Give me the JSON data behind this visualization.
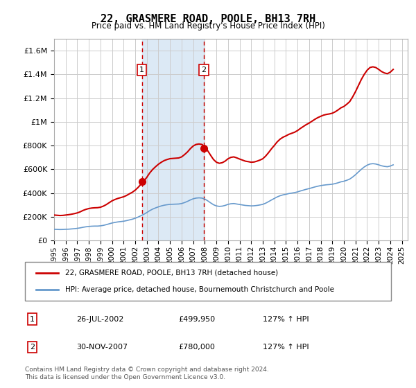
{
  "title": "22, GRASMERE ROAD, POOLE, BH13 7RH",
  "subtitle": "Price paid vs. HM Land Registry's House Price Index (HPI)",
  "hpi_label": "HPI: Average price, detached house, Bournemouth Christchurch and Poole",
  "property_label": "22, GRASMERE ROAD, POOLE, BH13 7RH (detached house)",
  "footer": "Contains HM Land Registry data © Crown copyright and database right 2024.\nThis data is licensed under the Open Government Licence v3.0.",
  "transactions": [
    {
      "label": "1",
      "date": "26-JUL-2002",
      "price": 499950,
      "hpi_pct": "127% ↑ HPI",
      "x": 2002.57
    },
    {
      "label": "2",
      "date": "30-NOV-2007",
      "price": 780000,
      "hpi_pct": "127% ↑ HPI",
      "x": 2007.92
    }
  ],
  "property_color": "#cc0000",
  "hpi_color": "#6699cc",
  "shaded_color": "#dce9f5",
  "annotation_box_color": "#cc0000",
  "ylim": [
    0,
    1700000
  ],
  "xlim_start": 1995,
  "xlim_end": 2025.5,
  "hpi_data": {
    "years": [
      1995,
      1995.25,
      1995.5,
      1995.75,
      1996,
      1996.25,
      1996.5,
      1996.75,
      1997,
      1997.25,
      1997.5,
      1997.75,
      1998,
      1998.25,
      1998.5,
      1998.75,
      1999,
      1999.25,
      1999.5,
      1999.75,
      2000,
      2000.25,
      2000.5,
      2000.75,
      2001,
      2001.25,
      2001.5,
      2001.75,
      2002,
      2002.25,
      2002.5,
      2002.75,
      2003,
      2003.25,
      2003.5,
      2003.75,
      2004,
      2004.25,
      2004.5,
      2004.75,
      2005,
      2005.25,
      2005.5,
      2005.75,
      2006,
      2006.25,
      2006.5,
      2006.75,
      2007,
      2007.25,
      2007.5,
      2007.75,
      2008,
      2008.25,
      2008.5,
      2008.75,
      2009,
      2009.25,
      2009.5,
      2009.75,
      2010,
      2010.25,
      2010.5,
      2010.75,
      2011,
      2011.25,
      2011.5,
      2011.75,
      2012,
      2012.25,
      2012.5,
      2012.75,
      2013,
      2013.25,
      2013.5,
      2013.75,
      2014,
      2014.25,
      2014.5,
      2014.75,
      2015,
      2015.25,
      2015.5,
      2015.75,
      2016,
      2016.25,
      2016.5,
      2016.75,
      2017,
      2017.25,
      2017.5,
      2017.75,
      2018,
      2018.25,
      2018.5,
      2018.75,
      2019,
      2019.25,
      2019.5,
      2019.75,
      2020,
      2020.25,
      2020.5,
      2020.75,
      2021,
      2021.25,
      2021.5,
      2021.75,
      2022,
      2022.25,
      2022.5,
      2022.75,
      2023,
      2023.25,
      2023.5,
      2023.75,
      2024,
      2024.25
    ],
    "values": [
      95000,
      94000,
      93000,
      93500,
      95000,
      96000,
      98000,
      100000,
      103000,
      107000,
      112000,
      116000,
      119000,
      121000,
      122000,
      122000,
      124000,
      128000,
      134000,
      141000,
      148000,
      153000,
      157000,
      160000,
      163000,
      168000,
      174000,
      180000,
      188000,
      198000,
      210000,
      222000,
      236000,
      252000,
      265000,
      275000,
      284000,
      292000,
      298000,
      302000,
      305000,
      306000,
      307000,
      308000,
      312000,
      320000,
      330000,
      342000,
      352000,
      358000,
      360000,
      358000,
      350000,
      335000,
      318000,
      302000,
      292000,
      288000,
      290000,
      296000,
      305000,
      310000,
      312000,
      308000,
      304000,
      300000,
      296000,
      294000,
      292000,
      293000,
      296000,
      300000,
      305000,
      315000,
      328000,
      342000,
      355000,
      368000,
      378000,
      385000,
      390000,
      396000,
      400000,
      404000,
      410000,
      418000,
      425000,
      432000,
      438000,
      445000,
      452000,
      458000,
      463000,
      467000,
      470000,
      472000,
      475000,
      480000,
      487000,
      495000,
      500000,
      508000,
      518000,
      535000,
      555000,
      578000,
      600000,
      620000,
      635000,
      645000,
      648000,
      645000,
      638000,
      630000,
      625000,
      622000,
      628000,
      638000
    ]
  },
  "property_data": {
    "years": [
      1995,
      1995.25,
      1995.5,
      1995.75,
      1996,
      1996.25,
      1996.5,
      1996.75,
      1997,
      1997.25,
      1997.5,
      1997.75,
      1998,
      1998.25,
      1998.5,
      1998.75,
      1999,
      1999.25,
      1999.5,
      1999.75,
      2000,
      2000.25,
      2000.5,
      2000.75,
      2001,
      2001.25,
      2001.5,
      2001.75,
      2002,
      2002.25,
      2002.5,
      2002.75,
      2003,
      2003.25,
      2003.5,
      2003.75,
      2004,
      2004.25,
      2004.5,
      2004.75,
      2005,
      2005.25,
      2005.5,
      2005.75,
      2006,
      2006.25,
      2006.5,
      2006.75,
      2007,
      2007.25,
      2007.5,
      2007.75,
      2008,
      2008.25,
      2008.5,
      2008.75,
      2009,
      2009.25,
      2009.5,
      2009.75,
      2010,
      2010.25,
      2010.5,
      2010.75,
      2011,
      2011.25,
      2011.5,
      2011.75,
      2012,
      2012.25,
      2012.5,
      2012.75,
      2013,
      2013.25,
      2013.5,
      2013.75,
      2014,
      2014.25,
      2014.5,
      2014.75,
      2015,
      2015.25,
      2015.5,
      2015.75,
      2016,
      2016.25,
      2016.5,
      2016.75,
      2017,
      2017.25,
      2017.5,
      2017.75,
      2018,
      2018.25,
      2018.5,
      2018.75,
      2019,
      2019.25,
      2019.5,
      2019.75,
      2020,
      2020.25,
      2020.5,
      2020.75,
      2021,
      2021.25,
      2021.5,
      2021.75,
      2022,
      2022.25,
      2022.5,
      2022.75,
      2023,
      2023.25,
      2023.5,
      2023.75,
      2024,
      2024.25
    ],
    "values": [
      215000,
      213000,
      211000,
      212000,
      215000,
      218000,
      222000,
      227000,
      233000,
      242000,
      254000,
      263000,
      270000,
      274000,
      276000,
      277000,
      281000,
      290000,
      303000,
      319000,
      335000,
      346000,
      355000,
      362000,
      369000,
      380000,
      394000,
      407000,
      425000,
      448000,
      475000,
      502000,
      533000,
      570000,
      599000,
      622000,
      643000,
      660000,
      674000,
      683000,
      690000,
      692000,
      694000,
      696000,
      705000,
      724000,
      746000,
      774000,
      797000,
      810000,
      814000,
      810000,
      791000,
      757000,
      719000,
      683000,
      660000,
      651000,
      656000,
      669000,
      689000,
      701000,
      705000,
      697000,
      687000,
      678000,
      669000,
      665000,
      660000,
      662000,
      669000,
      678000,
      689000,
      712000,
      741000,
      773000,
      802000,
      832000,
      855000,
      871000,
      882000,
      895000,
      904000,
      913000,
      927000,
      945000,
      961000,
      977000,
      990000,
      1006000,
      1022000,
      1036000,
      1047000,
      1057000,
      1063000,
      1067000,
      1073000,
      1085000,
      1101000,
      1119000,
      1130000,
      1149000,
      1171000,
      1210000,
      1255000,
      1306000,
      1357000,
      1400000,
      1435000,
      1458000,
      1464000,
      1458000,
      1442000,
      1424000,
      1412000,
      1406000,
      1419000,
      1442000
    ]
  }
}
